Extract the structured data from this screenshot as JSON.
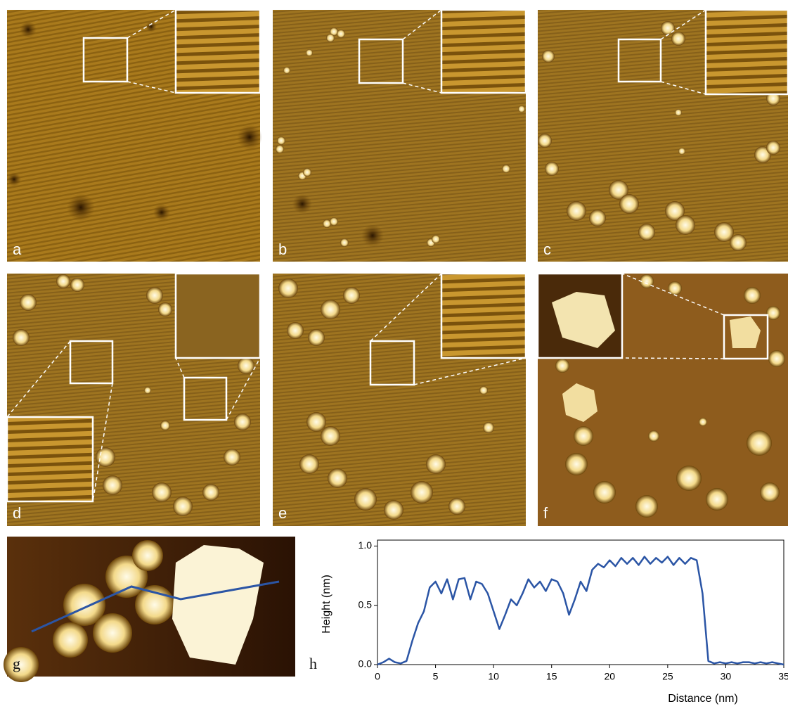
{
  "panel_labels": [
    "a",
    "b",
    "c",
    "d",
    "e",
    "f",
    "g",
    "h"
  ],
  "chart_data": {
    "type": "line",
    "x_label": "Distance (nm)",
    "y_label": "Height (nm)",
    "x": [
      0,
      0.5,
      1,
      1.5,
      2,
      2.5,
      3,
      3.5,
      4,
      4.5,
      5,
      5.5,
      6,
      6.5,
      7,
      7.5,
      8,
      8.5,
      9,
      9.5,
      10,
      10.5,
      11,
      11.5,
      12,
      12.5,
      13,
      13.5,
      14,
      14.5,
      15,
      15.5,
      16,
      16.5,
      17,
      17.5,
      18,
      18.5,
      19,
      19.5,
      20,
      20.5,
      21,
      21.5,
      22,
      22.5,
      23,
      23.5,
      24,
      24.5,
      25,
      25.5,
      26,
      26.5,
      27,
      27.5,
      28,
      28.5,
      29,
      29.5,
      30,
      30.5,
      31,
      31.5,
      32,
      32.5,
      33,
      33.5,
      34,
      34.5,
      35
    ],
    "values": [
      0,
      0.02,
      0.05,
      0.02,
      0.01,
      0.03,
      0.2,
      0.35,
      0.45,
      0.65,
      0.7,
      0.6,
      0.72,
      0.55,
      0.72,
      0.73,
      0.55,
      0.7,
      0.68,
      0.6,
      0.45,
      0.3,
      0.42,
      0.55,
      0.5,
      0.6,
      0.72,
      0.65,
      0.7,
      0.62,
      0.72,
      0.7,
      0.6,
      0.42,
      0.55,
      0.7,
      0.62,
      0.8,
      0.85,
      0.82,
      0.88,
      0.83,
      0.9,
      0.85,
      0.9,
      0.84,
      0.91,
      0.85,
      0.9,
      0.86,
      0.91,
      0.84,
      0.9,
      0.85,
      0.9,
      0.88,
      0.6,
      0.03,
      0.01,
      0.02,
      0.01,
      0.02,
      0.01,
      0.02,
      0.02,
      0.01,
      0.02,
      0.01,
      0.02,
      0.01,
      0
    ],
    "color": "#2b55a5",
    "xlim": [
      0,
      35
    ],
    "ylim": [
      0,
      1.05
    ],
    "xticks": [
      0,
      5,
      10,
      15,
      20,
      25,
      30,
      35
    ],
    "yticks": [
      {
        "value": 0,
        "label": "0.0"
      },
      0.5,
      {
        "value": 1,
        "label": "1.0"
      }
    ]
  }
}
